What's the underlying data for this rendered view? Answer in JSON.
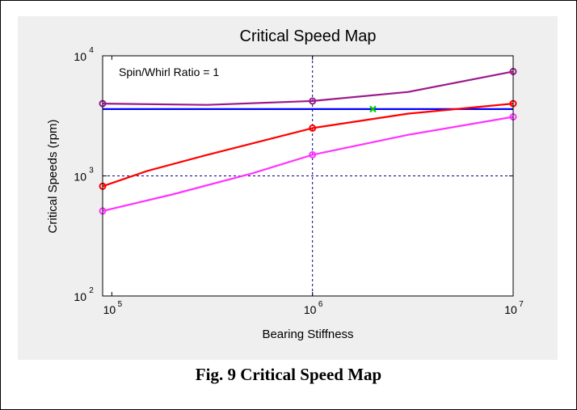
{
  "caption": "Fig. 9 Critical Speed Map",
  "chart_data": {
    "type": "line",
    "title": "Critical Speed Map",
    "xlabel": "Bearing Stiffness",
    "ylabel": "Critical Speeds (rpm)",
    "annotation": "Spin/Whirl Ratio = 1",
    "xscale": "log",
    "yscale": "log",
    "xlim": [
      90000,
      10000000
    ],
    "ylim": [
      100,
      10000
    ],
    "x_ticks": [
      {
        "value": 100000,
        "base": "10",
        "exp": "5"
      },
      {
        "value": 1000000,
        "base": "10",
        "exp": "6"
      },
      {
        "value": 10000000,
        "base": "10",
        "exp": "7"
      }
    ],
    "y_ticks": [
      {
        "value": 100,
        "base": "10",
        "exp": "2"
      },
      {
        "value": 1000,
        "base": "10",
        "exp": "3"
      },
      {
        "value": 10000,
        "base": "10",
        "exp": "4"
      }
    ],
    "dashed_reference_lines": {
      "x": [
        1000000
      ],
      "y": [
        1000
      ],
      "color": "#000080"
    },
    "grid": false,
    "series": [
      {
        "color": "#9b1a8a",
        "marker": "circle",
        "x": [
          90000,
          300000,
          1000000,
          3000000,
          10000000
        ],
        "y": [
          4000,
          3900,
          4200,
          5000,
          7400
        ],
        "marker_x": [
          90000,
          1000000,
          10000000
        ]
      },
      {
        "color": "#0000ff",
        "marker": "none",
        "x": [
          90000,
          10000000
        ],
        "y": [
          3600,
          3600
        ],
        "marker_x": []
      },
      {
        "color": "#ff0000",
        "marker": "circle",
        "x": [
          90000,
          150000,
          300000,
          1000000,
          3000000,
          10000000
        ],
        "y": [
          820,
          1100,
          1500,
          2500,
          3300,
          4000
        ],
        "marker_x": [
          90000,
          1000000,
          10000000
        ]
      },
      {
        "color": "#ff33ff",
        "marker": "circle",
        "x": [
          90000,
          200000,
          500000,
          1000000,
          3000000,
          10000000
        ],
        "y": [
          510,
          700,
          1050,
          1500,
          2200,
          3100
        ],
        "marker_x": [
          90000,
          1000000,
          10000000
        ]
      }
    ],
    "special_points": [
      {
        "x": 2000000,
        "y": 3600,
        "marker": "x",
        "color": "#00cc00"
      }
    ]
  }
}
